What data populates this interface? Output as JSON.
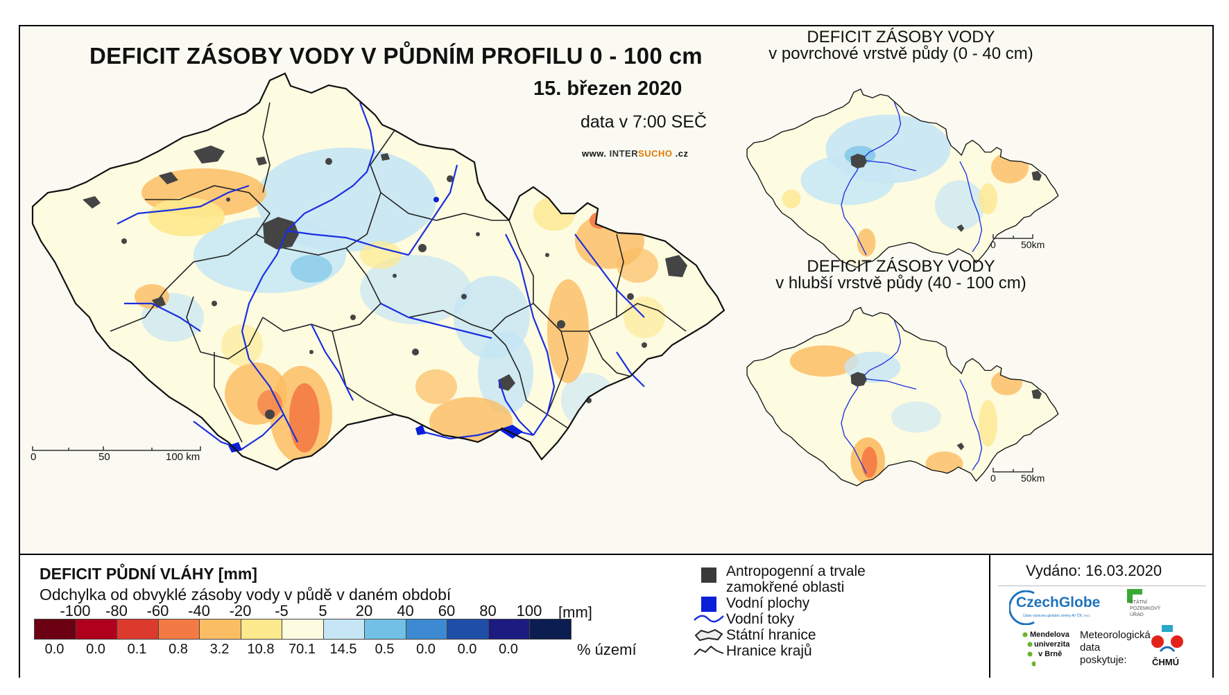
{
  "title": "DEFICIT ZÁSOBY VODY V PŮDNÍM PROFILU 0 - 100 cm",
  "date": "15. březen 2020",
  "data_time": "data v 7:00 SEČ",
  "url": {
    "prefix": "www.",
    "intersu": "INTER",
    "sucho": "SUCHO",
    "suffix": ".cz"
  },
  "main_scale": {
    "ticks": [
      "0",
      "50",
      "100 km"
    ]
  },
  "inset_top": {
    "title_line1": "DEFICIT ZÁSOBY VODY",
    "title_line2": "v povrchové vrstvě půdy (0 - 40 cm)",
    "scale": [
      "0",
      "50km"
    ]
  },
  "inset_bottom": {
    "title_line1": "DEFICIT ZÁSOBY VODY",
    "title_line2": "v hlubší vrstvě půdy (40 - 100 cm)",
    "scale": [
      "0",
      "50km"
    ]
  },
  "legend": {
    "title": "DEFICIT PŮDNÍ VLÁHY [mm]",
    "subtitle": "Odchylka od obvyklé zásoby vody v půdě v daném období",
    "breaks": [
      "-100",
      "-80",
      "-60",
      "-40",
      "-20",
      "-5",
      "5",
      "20",
      "40",
      "60",
      "80",
      "100"
    ],
    "unit": "[mm]",
    "classes": [
      {
        "color": "#6b0012",
        "pct": "0.0"
      },
      {
        "color": "#b0001e",
        "pct": "0.0"
      },
      {
        "color": "#dd3a2e",
        "pct": "0.1"
      },
      {
        "color": "#f47a45",
        "pct": "0.8"
      },
      {
        "color": "#fbbd63",
        "pct": "3.2"
      },
      {
        "color": "#fde98e",
        "pct": "10.8"
      },
      {
        "color": "#fdfbe0",
        "pct": "70.1"
      },
      {
        "color": "#c6e6f5",
        "pct": "14.5"
      },
      {
        "color": "#72c0e6",
        "pct": "0.5"
      },
      {
        "color": "#3d8ad2",
        "pct": "0.0"
      },
      {
        "color": "#1f4ea8",
        "pct": "0.0"
      },
      {
        "color": "#1c1c80",
        "pct": "0.0"
      },
      {
        "color": "#0c1d4f",
        "pct": ""
      }
    ],
    "pct_unit": "% území"
  },
  "symbols": {
    "anthro": "Antropogenní a trvale",
    "anthro2": "zamokřené oblasti",
    "water_areas": "Vodní plochy",
    "water_courses": "Vodní toky",
    "state_border": "Státní hranice",
    "region_border": "Hranice krajů"
  },
  "issued": "Vydáno: 16.03.2020",
  "logos": {
    "czechglobe": "CzechGlobe",
    "czechglobe_sub": "Ústav výzkumu globální změny AV ČR, v.v.i.",
    "spu1": "STÁTNÍ",
    "spu2": "POZEMKOVÝ",
    "spu3": "ÚŘAD",
    "mendel1": "Mendelova",
    "mendel2": "univerzita",
    "mendel3": "v Brně",
    "meteo1": "Meteorologická",
    "meteo2": "data",
    "meteo3": "poskytuje:",
    "chmu": "ČHMÚ"
  },
  "colors": {
    "cream": "#fdfbe0",
    "yellow": "#fde98e",
    "orange": "#fbbd63",
    "red_orange": "#f47a45",
    "light_blue": "#c6e6f5",
    "mid_blue": "#72c0e6",
    "urban": "#444444",
    "river": "#1a2ee0"
  }
}
